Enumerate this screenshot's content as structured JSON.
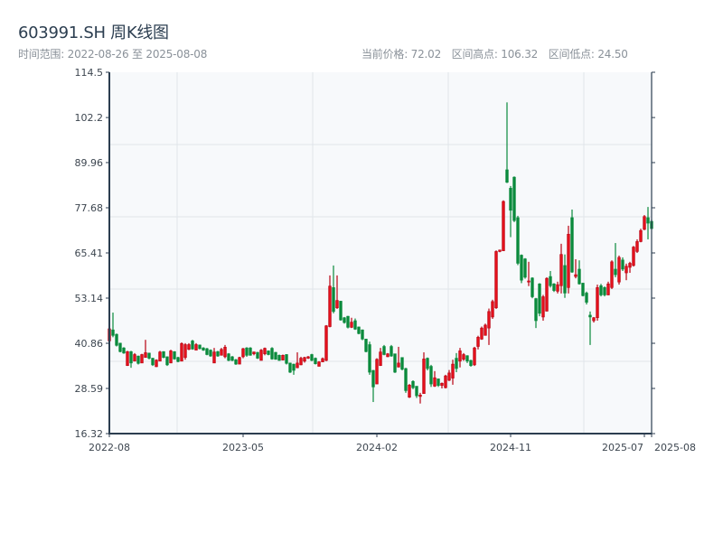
{
  "header": {
    "title": "603991.SH 周K线图",
    "range_label": "时间范围: 2022-08-26 至 2025-08-08",
    "current_price": "当前价格: 72.02",
    "range_high": "区间高点: 106.32",
    "range_low": "区间低点: 24.50"
  },
  "colors": {
    "up": "#e3101b",
    "up_edge": "#b80010",
    "down": "#0a8a3c",
    "background": "#f7f9fb",
    "spine": "#2c3e50",
    "grid": "#e1e5ea"
  },
  "chart_data": {
    "type": "candlestick",
    "title": "603991.SH 周K线图",
    "xlabel": "",
    "ylabel": "",
    "ylim": [
      16.32,
      114.5
    ],
    "xlim": [
      0,
      150
    ],
    "grid": true,
    "yticks": [
      "16.32",
      "28.59",
      "40.86",
      "53.14",
      "65.41",
      "77.68",
      "89.96",
      "102.2",
      "114.5"
    ],
    "ytick_values": [
      16.32,
      28.59,
      40.86,
      53.14,
      65.41,
      77.68,
      89.96,
      102.2,
      114.5
    ],
    "xticks": [
      {
        "label": "2022-08",
        "index": 0
      },
      {
        "label": "2023-05",
        "index": 37
      },
      {
        "label": "2024-02",
        "index": 74
      },
      {
        "label": "2024-11",
        "index": 111
      },
      {
        "label": "2025-07",
        "index": 148
      },
      {
        "label": "2025-08",
        "index": 150
      }
    ],
    "ohlc_format": [
      "open",
      "high",
      "low",
      "close"
    ],
    "ohlc": [
      [
        41.5,
        45,
        41.3,
        44.8
      ],
      [
        44.5,
        49.2,
        42.5,
        43
      ],
      [
        43.3,
        43.5,
        40,
        40.3
      ],
      [
        40.9,
        41,
        38.4,
        38.6
      ],
      [
        39.6,
        39.8,
        38,
        38.2
      ],
      [
        34.8,
        38.8,
        34.7,
        38.6
      ],
      [
        38.6,
        38.8,
        34.2,
        35.5
      ],
      [
        36,
        38.2,
        36,
        37.8
      ],
      [
        37.4,
        37.5,
        35.1,
        35.4
      ],
      [
        35.5,
        38,
        35.5,
        37.8
      ],
      [
        37,
        41.8,
        37,
        38.3
      ],
      [
        38.2,
        38.3,
        36.5,
        36.8
      ],
      [
        36.8,
        36.9,
        34.7,
        35
      ],
      [
        34.5,
        36.5,
        34.4,
        36.3
      ],
      [
        36,
        38.8,
        36,
        38.5
      ],
      [
        38.6,
        38.7,
        36.8,
        37
      ],
      [
        37.2,
        37.3,
        34.7,
        35
      ],
      [
        35.5,
        39.1,
        35.5,
        38.8
      ],
      [
        38.6,
        38.7,
        36.4,
        36.6
      ],
      [
        37,
        37.2,
        35.7,
        35.9
      ],
      [
        36,
        41.1,
        36,
        40.8
      ],
      [
        37,
        40.9,
        36.4,
        40.5
      ],
      [
        39.2,
        40.9,
        39,
        40.5
      ],
      [
        41.5,
        41.8,
        39.1,
        39.3
      ],
      [
        39,
        40.9,
        39,
        40.5
      ],
      [
        40.4,
        40.5,
        39.2,
        39.4
      ],
      [
        39.6,
        39.8,
        38.8,
        39
      ],
      [
        39.4,
        39.6,
        37.6,
        37.8
      ],
      [
        39,
        39.2,
        37.2,
        37.4
      ],
      [
        35.5,
        39.6,
        35.5,
        38.5
      ],
      [
        38.6,
        38.8,
        37.2,
        37.4
      ],
      [
        37.6,
        39.6,
        37.6,
        39.2
      ],
      [
        37.2,
        40.4,
        36.8,
        39.8
      ],
      [
        38,
        38.2,
        36,
        36.2
      ],
      [
        37.2,
        37.4,
        36,
        36.2
      ],
      [
        36.4,
        36.6,
        35,
        35.2
      ],
      [
        35.2,
        37.2,
        35.2,
        37
      ],
      [
        37.2,
        39.6,
        36.8,
        39.4
      ],
      [
        39.6,
        39.8,
        37.2,
        37.6
      ],
      [
        39.6,
        39.8,
        37.5,
        37.6
      ],
      [
        38,
        38.6,
        37.6,
        38.5
      ],
      [
        38.4,
        38.5,
        36.6,
        36.8
      ],
      [
        36.2,
        39.3,
        36.2,
        39
      ],
      [
        38,
        39.7,
        37.6,
        39.5
      ],
      [
        38.8,
        38.9,
        37.6,
        37.8
      ],
      [
        39.5,
        39.8,
        36.4,
        36.6
      ],
      [
        38.4,
        38.5,
        36.4,
        36.5
      ],
      [
        37.6,
        37.8,
        36.1,
        36.2
      ],
      [
        36.3,
        37.8,
        36.2,
        37.6
      ],
      [
        37.8,
        37.9,
        35.1,
        35.4
      ],
      [
        35.5,
        35.6,
        32.8,
        33
      ],
      [
        35.2,
        35.3,
        32.3,
        33.5
      ],
      [
        34.2,
        38.4,
        34.1,
        35.5
      ],
      [
        35,
        37.2,
        34.9,
        36.8
      ],
      [
        36,
        37.2,
        35.6,
        37
      ],
      [
        36.8,
        37.4,
        36.6,
        37.2
      ],
      [
        37.8,
        38,
        36,
        36.2
      ],
      [
        36.8,
        37,
        35.1,
        35.3
      ],
      [
        34.6,
        36,
        34.6,
        35.8
      ],
      [
        35.8,
        37,
        35.8,
        36.7
      ],
      [
        36.2,
        45.8,
        36,
        45.6
      ],
      [
        45.4,
        59.3,
        45.2,
        56.4
      ],
      [
        56,
        62,
        49,
        49.5
      ],
      [
        50.5,
        59.3,
        50.2,
        52.5
      ],
      [
        52.3,
        52.4,
        47,
        47.2
      ],
      [
        47.8,
        48,
        46.2,
        46.5
      ],
      [
        48.2,
        48.3,
        44.9,
        45.2
      ],
      [
        45.2,
        47.8,
        45,
        46.6
      ],
      [
        47,
        47.6,
        44.5,
        44.7
      ],
      [
        45.3,
        45.4,
        43.3,
        43.5
      ],
      [
        44.5,
        44.6,
        41.7,
        42
      ],
      [
        42,
        42.1,
        38.4,
        38.6
      ],
      [
        40.5,
        41.3,
        32.3,
        33
      ],
      [
        33.5,
        33.6,
        24.9,
        29
      ],
      [
        29.8,
        36.8,
        29.8,
        36.5
      ],
      [
        34.8,
        39.6,
        34.7,
        38.5
      ],
      [
        40,
        40.4,
        37.6,
        37.8
      ],
      [
        37.2,
        38.2,
        37.1,
        38
      ],
      [
        40,
        40.4,
        37.2,
        37.4
      ],
      [
        38,
        38,
        32.8,
        33
      ],
      [
        34.4,
        39.9,
        34.3,
        35.5
      ],
      [
        37,
        37,
        33.5,
        33.8
      ],
      [
        34,
        34.2,
        27.4,
        28
      ],
      [
        26.2,
        29.8,
        26,
        29.5
      ],
      [
        30.5,
        30.8,
        28.4,
        28.8
      ],
      [
        29.2,
        29.2,
        26,
        26.6
      ],
      [
        26.4,
        27.4,
        24.5,
        26.8
      ],
      [
        27.2,
        38.4,
        27.2,
        36.6
      ],
      [
        36.8,
        37,
        33.5,
        34
      ],
      [
        34.6,
        35,
        29,
        29.8
      ],
      [
        29.2,
        33.3,
        29,
        31.5
      ],
      [
        31.2,
        31.2,
        29,
        29.4
      ],
      [
        29.4,
        30.2,
        28.6,
        30
      ],
      [
        28.8,
        32.3,
        28.6,
        32
      ],
      [
        30.8,
        33.6,
        30.6,
        32.8
      ],
      [
        31.4,
        36.4,
        29.6,
        35.2
      ],
      [
        36.8,
        38.2,
        33,
        34
      ],
      [
        36,
        39.6,
        34.3,
        38.8
      ],
      [
        36.5,
        38.2,
        36.1,
        37.8
      ],
      [
        37.5,
        37.6,
        35.5,
        36
      ],
      [
        36.2,
        36.4,
        34.5,
        34.8
      ],
      [
        35,
        39.9,
        34.7,
        39.6
      ],
      [
        40,
        42.9,
        39.2,
        42.5
      ],
      [
        42,
        45.4,
        41.8,
        45
      ],
      [
        43,
        46.2,
        43,
        45.8
      ],
      [
        45,
        50.3,
        40.4,
        49.5
      ],
      [
        48,
        52.7,
        47.5,
        52.2
      ],
      [
        50.5,
        66.1,
        50.2,
        65.8
      ],
      [
        65.8,
        66.3,
        65.6,
        66.2
      ],
      [
        66,
        79.7,
        65.9,
        79.4
      ],
      [
        88,
        106.32,
        84.4,
        84.6
      ],
      [
        83,
        83.6,
        69.7,
        77
      ],
      [
        86,
        86.2,
        73.8,
        74.2
      ],
      [
        75,
        75.5,
        62.1,
        62.6
      ],
      [
        64.8,
        65,
        57.2,
        58
      ],
      [
        63.8,
        64,
        58.4,
        58.8
      ],
      [
        57.5,
        63,
        56.4,
        57.8
      ],
      [
        58.6,
        58.8,
        53.1,
        53.5
      ],
      [
        53,
        53.2,
        45,
        47
      ],
      [
        57,
        57.2,
        48.2,
        49
      ],
      [
        48,
        54,
        47,
        53.5
      ],
      [
        49.6,
        58.8,
        49.5,
        58.5
      ],
      [
        59,
        60.5,
        56,
        56.5
      ],
      [
        57,
        57.2,
        54.8,
        55.2
      ],
      [
        55,
        57.6,
        54.4,
        56.8
      ],
      [
        56.5,
        67.9,
        54.4,
        65
      ],
      [
        62,
        65,
        53.2,
        54.5
      ],
      [
        56,
        72.8,
        54.4,
        70.5
      ],
      [
        75,
        77.2,
        60,
        60.2
      ],
      [
        59,
        63.7,
        58.5,
        59.5
      ],
      [
        61,
        63.4,
        56.8,
        57
      ],
      [
        57.2,
        57.3,
        53.6,
        53.8
      ],
      [
        54.5,
        54.9,
        51.4,
        52
      ],
      [
        48.5,
        49.5,
        40.4,
        48
      ],
      [
        47,
        48,
        46.5,
        47.8
      ],
      [
        47.8,
        56.8,
        47,
        56
      ],
      [
        56.5,
        57,
        53.6,
        54
      ],
      [
        56,
        56.3,
        53.6,
        54
      ],
      [
        54,
        57.6,
        53.9,
        57
      ],
      [
        56,
        63.4,
        55.6,
        63
      ],
      [
        61,
        68.1,
        58.8,
        59.5
      ],
      [
        57.5,
        64.7,
        56.8,
        64.2
      ],
      [
        63.5,
        64.2,
        60.5,
        61
      ],
      [
        60,
        62.5,
        58,
        61.8
      ],
      [
        61.5,
        63,
        60,
        62.6
      ],
      [
        62,
        67.3,
        61.7,
        67
      ],
      [
        65.8,
        69.1,
        65.4,
        68.5
      ],
      [
        68.5,
        72,
        68.3,
        71.5
      ],
      [
        71.8,
        75.7,
        71.6,
        75.3
      ],
      [
        75,
        77.9,
        69.1,
        73.5
      ],
      [
        74,
        74.5,
        72,
        72.02
      ]
    ]
  }
}
